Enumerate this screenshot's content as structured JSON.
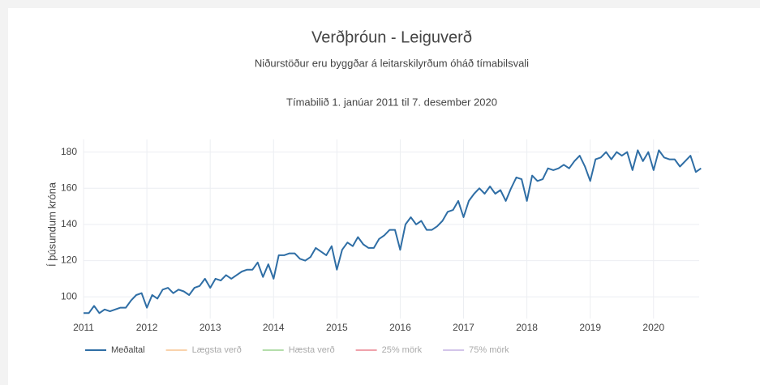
{
  "chart_data": {
    "type": "line",
    "title": "Verðþróun - Leiguverð",
    "subtitle": "Niðurstöður eru byggðar á leitarskilyrðum óháð tímabilsvali",
    "period": "Tímabilið 1. janúar 2011 til 7. desember 2020",
    "ylabel": "Í þúsundum króna",
    "xlim": [
      2011,
      2020.72
    ],
    "xticks": [
      2011,
      2012,
      2013,
      2014,
      2015,
      2016,
      2017,
      2018,
      2019,
      2020
    ],
    "ylim": [
      88,
      187
    ],
    "yticks": [
      100,
      120,
      140,
      160,
      180
    ],
    "grid": true,
    "x": [
      2011,
      2011.083,
      2011.167,
      2011.25,
      2011.333,
      2011.417,
      2011.5,
      2011.583,
      2011.667,
      2011.75,
      2011.833,
      2011.917,
      2012,
      2012.083,
      2012.167,
      2012.25,
      2012.333,
      2012.417,
      2012.5,
      2012.583,
      2012.667,
      2012.75,
      2012.833,
      2012.917,
      2013,
      2013.083,
      2013.167,
      2013.25,
      2013.333,
      2013.417,
      2013.5,
      2013.583,
      2013.667,
      2013.75,
      2013.833,
      2013.917,
      2014,
      2014.083,
      2014.167,
      2014.25,
      2014.333,
      2014.417,
      2014.5,
      2014.583,
      2014.667,
      2014.75,
      2014.833,
      2014.917,
      2015,
      2015.083,
      2015.167,
      2015.25,
      2015.333,
      2015.417,
      2015.5,
      2015.583,
      2015.667,
      2015.75,
      2015.833,
      2015.917,
      2016,
      2016.083,
      2016.167,
      2016.25,
      2016.333,
      2016.417,
      2016.5,
      2016.583,
      2016.667,
      2016.75,
      2016.833,
      2016.917,
      2017,
      2017.083,
      2017.167,
      2017.25,
      2017.333,
      2017.417,
      2017.5,
      2017.583,
      2017.667,
      2017.75,
      2017.833,
      2017.917,
      2018,
      2018.083,
      2018.167,
      2018.25,
      2018.333,
      2018.417,
      2018.5,
      2018.583,
      2018.667,
      2018.75,
      2018.833,
      2018.917,
      2019,
      2019.083,
      2019.167,
      2019.25,
      2019.333,
      2019.417,
      2019.5,
      2019.583,
      2019.667,
      2019.75,
      2019.833,
      2019.917,
      2020,
      2020.083,
      2020.167,
      2020.25,
      2020.333,
      2020.417,
      2020.5,
      2020.583,
      2020.667,
      2020.75
    ],
    "series": [
      {
        "name": "Meðaltal",
        "color": "#2f6ea5",
        "values": [
          91,
          91,
          95,
          91,
          93,
          92,
          93,
          94,
          94,
          98,
          101,
          102,
          94,
          101,
          99,
          104,
          105,
          102,
          104,
          103,
          101,
          105,
          106,
          110,
          105,
          110,
          109,
          112,
          110,
          112,
          114,
          115,
          115,
          119,
          111,
          118,
          110,
          123,
          123,
          124,
          124,
          121,
          120,
          122,
          127,
          125,
          123,
          128,
          115,
          126,
          130,
          128,
          133,
          129,
          127,
          127,
          132,
          134,
          137,
          137,
          126,
          140,
          144,
          140,
          142,
          137,
          137,
          139,
          142,
          147,
          148,
          153,
          144,
          153,
          157,
          160,
          157,
          161,
          157,
          159,
          153,
          160,
          166,
          165,
          153,
          167,
          164,
          165,
          171,
          170,
          171,
          173,
          171,
          175,
          178,
          172,
          164,
          176,
          177,
          180,
          176,
          180,
          178,
          180,
          170,
          181,
          175,
          180,
          170,
          181,
          177,
          176,
          176,
          172,
          175,
          178,
          169,
          171
        ]
      }
    ],
    "hidden_series": [
      {
        "name": "Lægsta verð",
        "color": "#f5a65b"
      },
      {
        "name": "Hæsta verð",
        "color": "#6cbf5a"
      },
      {
        "name": "25% mörk",
        "color": "#e0475a"
      },
      {
        "name": "75% mörk",
        "color": "#a98cd6"
      }
    ]
  }
}
